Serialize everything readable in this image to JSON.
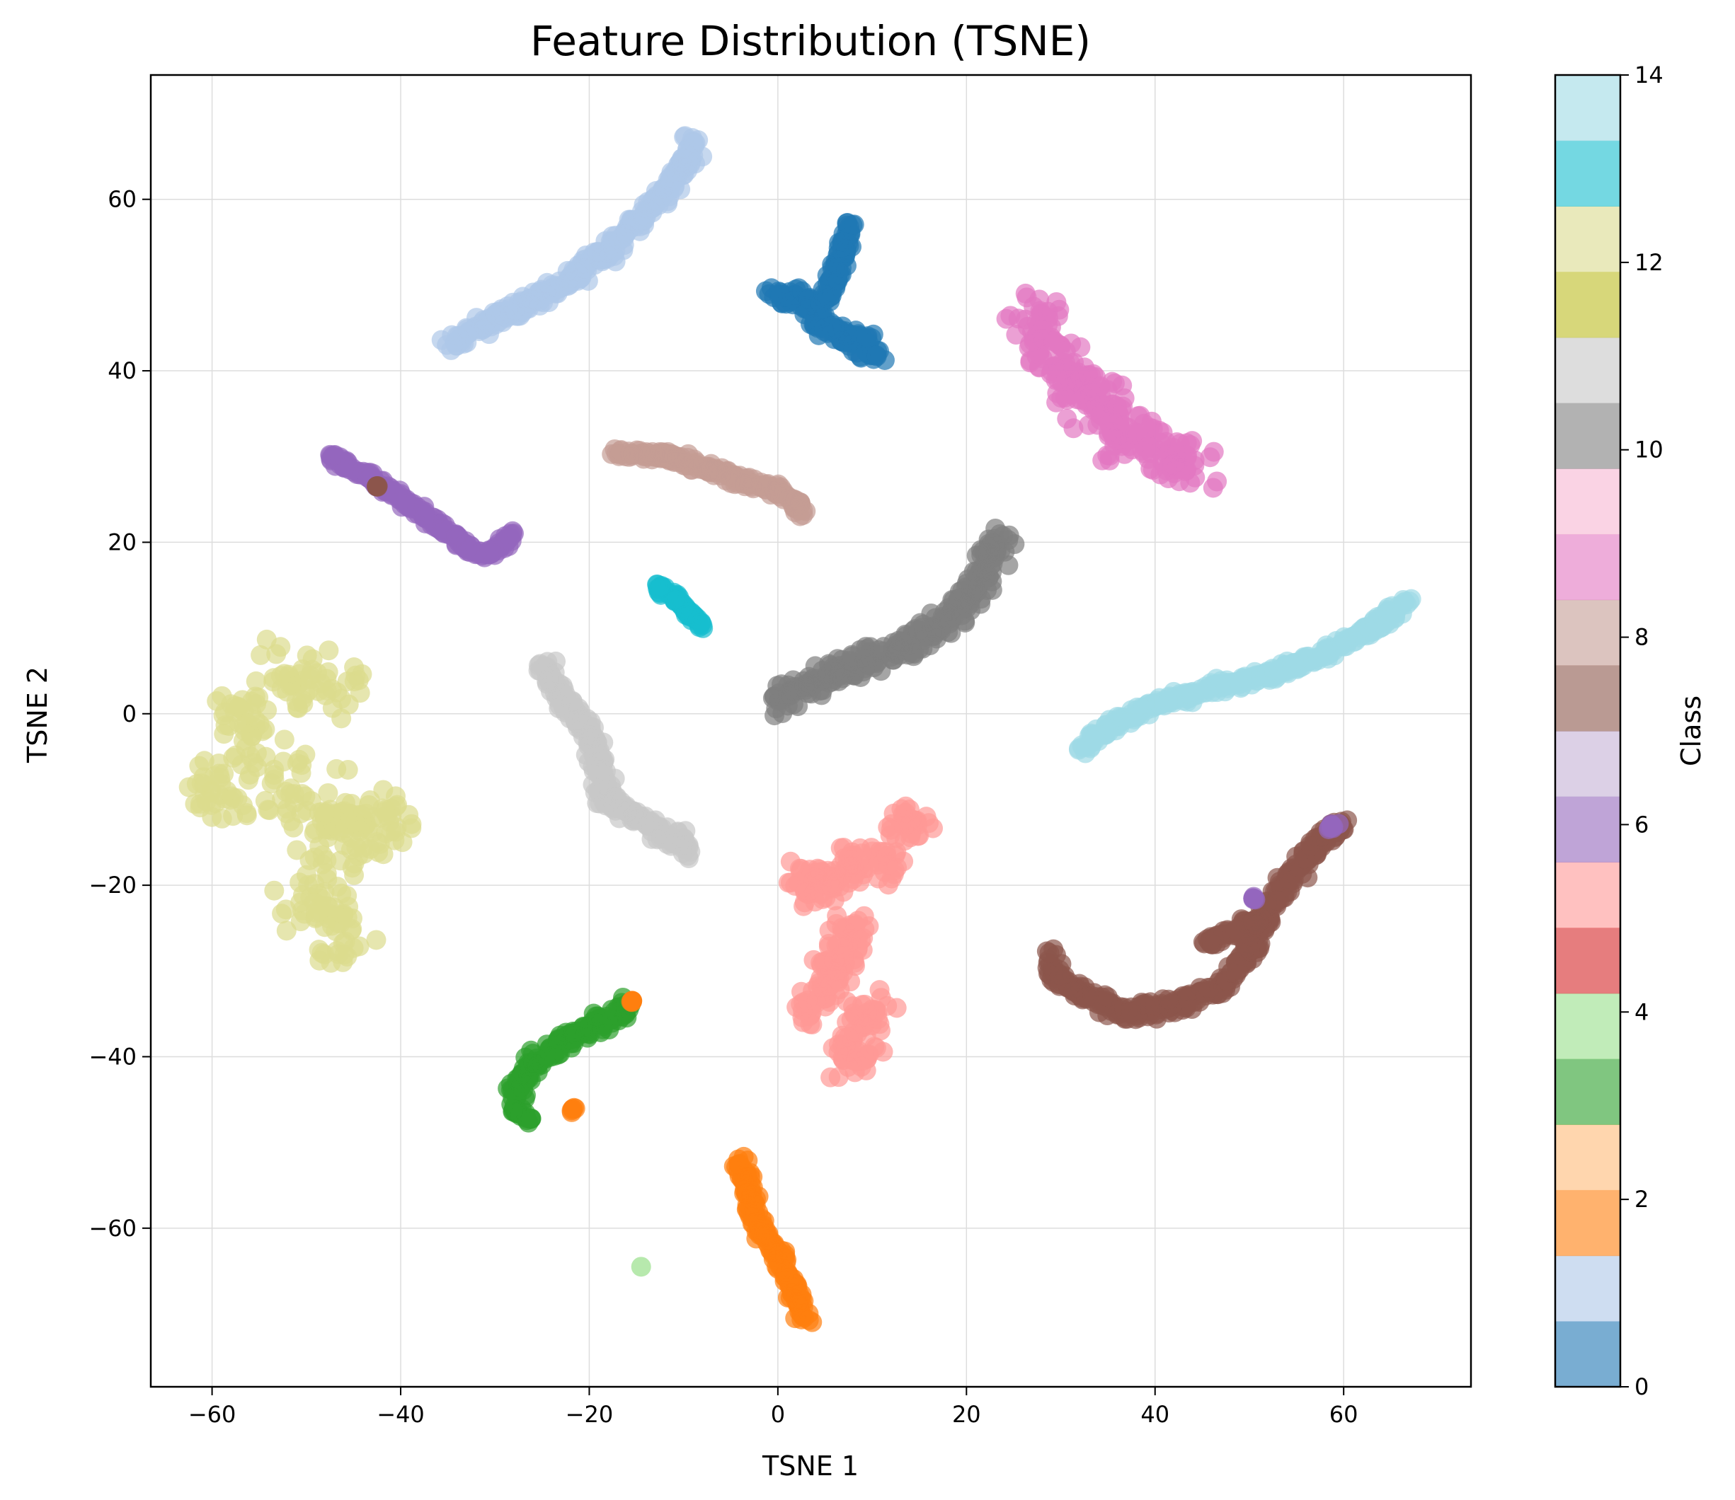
{
  "chart_data": {
    "type": "scatter",
    "title": "Feature Distribution (TSNE)",
    "xlabel": "TSNE 1",
    "ylabel": "TSNE 2",
    "xlim": [
      -66.5,
      73.5
    ],
    "ylim": [
      -78.5,
      74.5
    ],
    "xticks": [
      -60,
      -40,
      -20,
      0,
      20,
      40,
      60
    ],
    "xtick_labels": [
      "−60",
      "−40",
      "−20",
      "0",
      "20",
      "40",
      "60"
    ],
    "yticks": [
      -60,
      -40,
      -20,
      0,
      20,
      40,
      60
    ],
    "ytick_labels": [
      "−60",
      "−40",
      "−20",
      "0",
      "20",
      "40",
      "60"
    ],
    "grid": true,
    "marker_alpha": 0.7,
    "colorbar": {
      "label": "Class",
      "range": [
        0,
        14
      ],
      "ticks": [
        0,
        2,
        4,
        6,
        8,
        10,
        12,
        14
      ],
      "tick_labels": [
        "0",
        "2",
        "4",
        "6",
        "8",
        "10",
        "12",
        "14"
      ],
      "colors": [
        "#1f77b4",
        "#aec7e8",
        "#ff7f0e",
        "#ffbb78",
        "#2ca02c",
        "#98df8a",
        "#d62728",
        "#ff9896",
        "#9467bd",
        "#c5b0d5",
        "#8c564b",
        "#c49c94",
        "#e377c2",
        "#f7b6d2",
        "#7f7f7f",
        "#c7c7c7",
        "#bcbd22",
        "#dbdb8d",
        "#17becf",
        "#9edae5"
      ],
      "alpha": 0.6
    },
    "clusters": [
      {
        "color": "#aec7e8",
        "shape": "path",
        "points": [
          [
            -35,
            43
          ],
          [
            -31,
            45.5
          ],
          [
            -27,
            47.5
          ],
          [
            -23,
            50
          ],
          [
            -19,
            53
          ],
          [
            -15,
            57
          ],
          [
            -12,
            61
          ],
          [
            -10,
            64
          ],
          [
            -9,
            67
          ]
        ],
        "spread": 1.0
      },
      {
        "color": "#1f77b4",
        "shape": "path",
        "points": [
          [
            -0.5,
            49
          ],
          [
            3,
            48
          ],
          [
            5,
            45
          ],
          [
            8,
            43.5
          ],
          [
            11,
            42
          ]
        ],
        "spread": 1.2
      },
      {
        "color": "#1f77b4",
        "shape": "path",
        "points": [
          [
            5,
            48
          ],
          [
            6,
            51
          ],
          [
            7,
            54
          ],
          [
            7.5,
            57
          ]
        ],
        "spread": 0.8
      },
      {
        "color": "#e377c2",
        "shape": "path",
        "points": [
          [
            27,
            47
          ],
          [
            29,
            42
          ],
          [
            32,
            38
          ],
          [
            37,
            33
          ],
          [
            41,
            30
          ],
          [
            45,
            29.5
          ]
        ],
        "spread": 2.8
      },
      {
        "color": "#9467bd",
        "shape": "path",
        "points": [
          [
            -47.5,
            30
          ],
          [
            -44,
            28
          ],
          [
            -40,
            25
          ],
          [
            -36,
            22
          ],
          [
            -33,
            19.5
          ],
          [
            -31,
            18.5
          ],
          [
            -29,
            20
          ],
          [
            -28,
            21
          ]
        ],
        "spread": 0.6
      },
      {
        "color": "#8c564b",
        "shape": "path",
        "points": [
          [
            -42.5,
            26.5
          ]
        ],
        "spread": 0.1
      },
      {
        "color": "#c49c94",
        "shape": "path",
        "points": [
          [
            -17,
            30.5
          ],
          [
            -12,
            30
          ],
          [
            -7,
            28.5
          ],
          [
            -3,
            27
          ],
          [
            0,
            26
          ],
          [
            2,
            24.5
          ],
          [
            3,
            23.5
          ]
        ],
        "spread": 0.7
      },
      {
        "color": "#17becf",
        "shape": "path",
        "points": [
          [
            -13,
            15
          ],
          [
            -11,
            13.5
          ],
          [
            -9.5,
            12
          ],
          [
            -8,
            10
          ]
        ],
        "spread": 0.5
      },
      {
        "color": "#7f7f7f",
        "shape": "path",
        "points": [
          [
            0,
            1
          ],
          [
            2,
            3
          ],
          [
            5,
            4
          ],
          [
            8,
            5.5
          ],
          [
            12,
            7
          ],
          [
            17,
            10
          ],
          [
            20,
            13
          ],
          [
            22,
            16
          ],
          [
            23,
            19
          ],
          [
            23.5,
            21
          ]
        ],
        "spread": 1.5
      },
      {
        "color": "#9edae5",
        "shape": "path",
        "points": [
          [
            32,
            -4
          ],
          [
            36,
            -1
          ],
          [
            40,
            1
          ],
          [
            46,
            3
          ],
          [
            52,
            4.5
          ],
          [
            58,
            7
          ],
          [
            63,
            10
          ],
          [
            67,
            13.5
          ]
        ],
        "spread": 0.7
      },
      {
        "color": "#dbdb8d",
        "shape": "blob",
        "points": [
          [
            -57,
            0
          ],
          [
            -54,
            -5
          ],
          [
            -50,
            -10
          ],
          [
            -47,
            -15
          ],
          [
            -49,
            -22
          ],
          [
            -45,
            -12
          ],
          [
            -42,
            -13
          ],
          [
            -48,
            3
          ],
          [
            -52,
            4
          ],
          [
            -59,
            -9
          ],
          [
            -47,
            -26
          ]
        ],
        "spread": 4.0
      },
      {
        "color": "#c7c7c7",
        "shape": "path",
        "points": [
          [
            -25,
            6
          ],
          [
            -23,
            2
          ],
          [
            -20,
            -2
          ],
          [
            -19,
            -6
          ],
          [
            -18,
            -10
          ],
          [
            -15,
            -12
          ],
          [
            -12,
            -14
          ],
          [
            -9,
            -16
          ]
        ],
        "spread": 1.0
      },
      {
        "color": "#ff9896",
        "shape": "blob",
        "points": [
          [
            4,
            -20
          ],
          [
            8,
            -18
          ],
          [
            12,
            -17
          ],
          [
            14,
            -13
          ],
          [
            8,
            -26
          ],
          [
            6,
            -30
          ],
          [
            4,
            -34
          ],
          [
            9,
            -35
          ],
          [
            8,
            -40
          ]
        ],
        "spread": 2.5
      },
      {
        "color": "#8c564b",
        "shape": "path",
        "points": [
          [
            29,
            -28
          ],
          [
            29.5,
            -31
          ],
          [
            33,
            -33
          ],
          [
            37,
            -35
          ],
          [
            42,
            -34
          ],
          [
            47,
            -32
          ],
          [
            50,
            -28
          ],
          [
            52,
            -23
          ],
          [
            55,
            -18
          ],
          [
            58,
            -14.5
          ],
          [
            60,
            -13
          ]
        ],
        "spread": 0.9
      },
      {
        "color": "#8c564b",
        "shape": "path",
        "points": [
          [
            45,
            -27
          ],
          [
            48,
            -25.5
          ],
          [
            51,
            -24
          ]
        ],
        "spread": 0.6
      },
      {
        "color": "#9467bd",
        "shape": "path",
        "points": [
          [
            58.5,
            -13.2
          ],
          [
            59.5,
            -13
          ]
        ],
        "spread": 0.3
      },
      {
        "color": "#9467bd",
        "shape": "path",
        "points": [
          [
            50.5,
            -21.5
          ]
        ],
        "spread": 0.2
      },
      {
        "color": "#2ca02c",
        "shape": "path",
        "points": [
          [
            -28,
            -45
          ],
          [
            -27,
            -42
          ],
          [
            -25,
            -40
          ],
          [
            -22,
            -38
          ],
          [
            -19,
            -36
          ],
          [
            -17,
            -35
          ],
          [
            -16,
            -34
          ]
        ],
        "spread": 1.1
      },
      {
        "color": "#2ca02c",
        "shape": "path",
        "points": [
          [
            -28,
            -46
          ],
          [
            -26,
            -47.5
          ]
        ],
        "spread": 0.5
      },
      {
        "color": "#ff7f0e",
        "shape": "path",
        "points": [
          [
            -22,
            -46.5
          ],
          [
            -21.5,
            -46
          ]
        ],
        "spread": 0.2
      },
      {
        "color": "#ff7f0e",
        "shape": "path",
        "points": [
          [
            -15.5,
            -33.5
          ]
        ],
        "spread": 0.1
      },
      {
        "color": "#ff7f0e",
        "shape": "path",
        "points": [
          [
            -4,
            -52
          ],
          [
            -3,
            -56
          ],
          [
            -2,
            -60
          ],
          [
            0,
            -63
          ],
          [
            1,
            -65
          ],
          [
            2,
            -68
          ],
          [
            3,
            -71
          ]
        ],
        "spread": 0.8
      },
      {
        "color": "#98df8a",
        "shape": "single",
        "points": [
          [
            -14.5,
            -64.5
          ]
        ],
        "spread": 0
      }
    ]
  }
}
